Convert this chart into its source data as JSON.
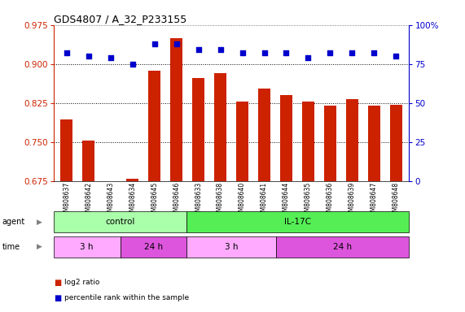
{
  "title": "GDS4807 / A_32_P233155",
  "samples": [
    "GSM808637",
    "GSM808642",
    "GSM808643",
    "GSM808634",
    "GSM808645",
    "GSM808646",
    "GSM808633",
    "GSM808638",
    "GSM808640",
    "GSM808641",
    "GSM808644",
    "GSM808635",
    "GSM808636",
    "GSM808639",
    "GSM808647",
    "GSM808648"
  ],
  "log2_ratio": [
    0.793,
    0.752,
    0.672,
    0.68,
    0.887,
    0.95,
    0.873,
    0.882,
    0.827,
    0.852,
    0.84,
    0.827,
    0.82,
    0.832,
    0.82,
    0.822
  ],
  "percentile": [
    82,
    80,
    79,
    75,
    88,
    88,
    84,
    84,
    82,
    82,
    82,
    79,
    82,
    82,
    82,
    80
  ],
  "ylim_left": [
    0.675,
    0.975
  ],
  "ylim_right": [
    0,
    100
  ],
  "yticks_left": [
    0.675,
    0.75,
    0.825,
    0.9,
    0.975
  ],
  "yticks_right": [
    0,
    25,
    50,
    75,
    100
  ],
  "bar_color": "#cc2200",
  "dot_color": "#0000cc",
  "agent_groups": [
    {
      "label": "control",
      "start": 0,
      "end": 6,
      "color": "#aaffaa"
    },
    {
      "label": "IL-17C",
      "start": 6,
      "end": 16,
      "color": "#55ee55"
    }
  ],
  "time_groups": [
    {
      "label": "3 h",
      "start": 0,
      "end": 3,
      "color": "#ffaaff"
    },
    {
      "label": "24 h",
      "start": 3,
      "end": 6,
      "color": "#dd55dd"
    },
    {
      "label": "3 h",
      "start": 6,
      "end": 10,
      "color": "#ffaaff"
    },
    {
      "label": "24 h",
      "start": 10,
      "end": 16,
      "color": "#dd55dd"
    }
  ],
  "legend_red": "log2 ratio",
  "legend_blue": "percentile rank within the sample"
}
